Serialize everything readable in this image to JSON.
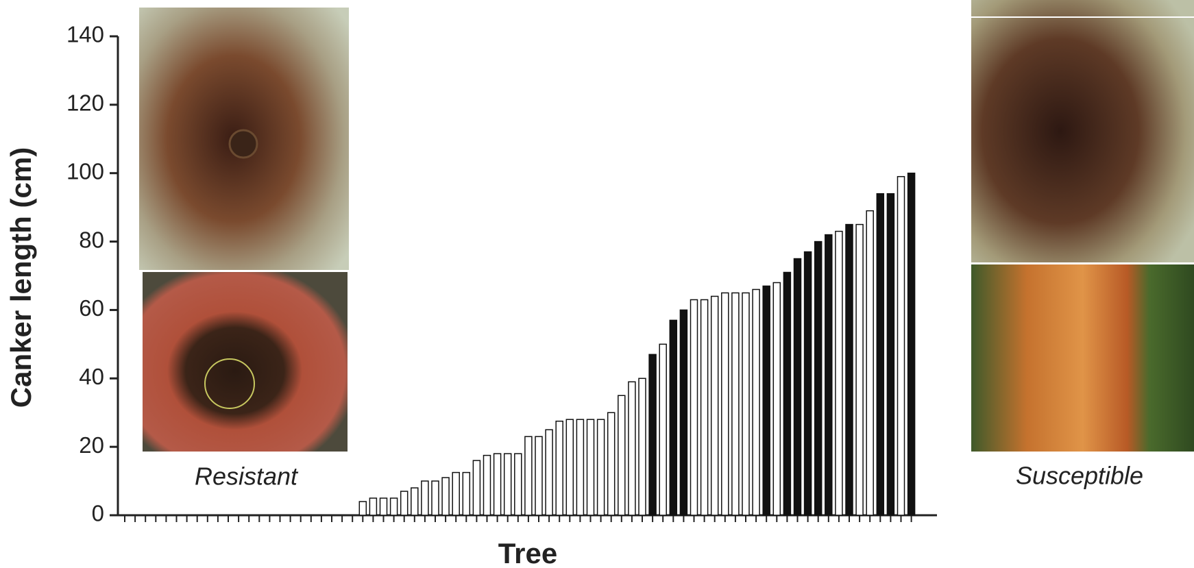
{
  "chart_data": {
    "type": "bar",
    "ylabel": "Canker length (cm)",
    "xlabel": "Tree",
    "annotations": [
      "Resistant",
      "Susceptible"
    ],
    "categories": [
      null,
      null,
      null,
      null,
      null,
      null,
      null,
      null,
      null,
      null,
      null,
      null,
      null,
      null,
      null,
      null,
      null,
      null,
      null,
      null,
      null,
      null,
      null,
      null,
      null,
      null,
      null,
      null,
      null,
      null,
      null,
      null,
      null,
      null,
      null,
      null,
      null,
      null,
      null,
      null,
      null,
      null,
      null,
      null,
      null,
      null,
      null,
      null,
      null,
      null,
      null,
      null,
      null,
      null,
      null,
      null,
      null,
      null,
      null,
      null,
      null,
      null,
      null,
      null,
      null,
      null,
      null,
      null,
      null,
      null,
      null,
      null,
      null,
      null,
      null,
      null,
      null
    ],
    "values": [
      0,
      0,
      0,
      0,
      0,
      0,
      0,
      0,
      0,
      0,
      0,
      0,
      0,
      0,
      0,
      0,
      0,
      0,
      0,
      0,
      0,
      0,
      0,
      4,
      5,
      5,
      5,
      7,
      8,
      10,
      10,
      11,
      12.5,
      12.5,
      16,
      17.5,
      18,
      18,
      18,
      23,
      23,
      25,
      27.5,
      28,
      28,
      28,
      28,
      30,
      35,
      39,
      40,
      47,
      50,
      57,
      60,
      63,
      63,
      64,
      65,
      65,
      65,
      66,
      67,
      68,
      71,
      75,
      77,
      80,
      82,
      83,
      85,
      85,
      89,
      94,
      94,
      99,
      100
    ],
    "bar_colors": [
      "#ffffff",
      "#ffffff",
      "#ffffff",
      "#ffffff",
      "#ffffff",
      "#ffffff",
      "#ffffff",
      "#ffffff",
      "#ffffff",
      "#ffffff",
      "#ffffff",
      "#ffffff",
      "#ffffff",
      "#ffffff",
      "#ffffff",
      "#ffffff",
      "#ffffff",
      "#ffffff",
      "#ffffff",
      "#ffffff",
      "#ffffff",
      "#ffffff",
      "#ffffff",
      "#ffffff",
      "#ffffff",
      "#ffffff",
      "#ffffff",
      "#ffffff",
      "#ffffff",
      "#ffffff",
      "#ffffff",
      "#ffffff",
      "#ffffff",
      "#ffffff",
      "#ffffff",
      "#ffffff",
      "#ffffff",
      "#ffffff",
      "#ffffff",
      "#ffffff",
      "#ffffff",
      "#ffffff",
      "#ffffff",
      "#ffffff",
      "#ffffff",
      "#ffffff",
      "#ffffff",
      "#ffffff",
      "#ffffff",
      "#ffffff",
      "#ffffff",
      "#111111",
      "#ffffff",
      "#111111",
      "#111111",
      "#ffffff",
      "#ffffff",
      "#ffffff",
      "#ffffff",
      "#ffffff",
      "#ffffff",
      "#ffffff",
      "#111111",
      "#ffffff",
      "#111111",
      "#111111",
      "#111111",
      "#111111",
      "#111111",
      "#ffffff",
      "#111111",
      "#ffffff",
      "#ffffff",
      "#111111",
      "#111111",
      "#ffffff",
      "#111111"
    ],
    "ylim": [
      0,
      140
    ],
    "yticks": [
      0,
      20,
      40,
      60,
      80,
      100,
      120,
      140
    ],
    "grid": false
  }
}
